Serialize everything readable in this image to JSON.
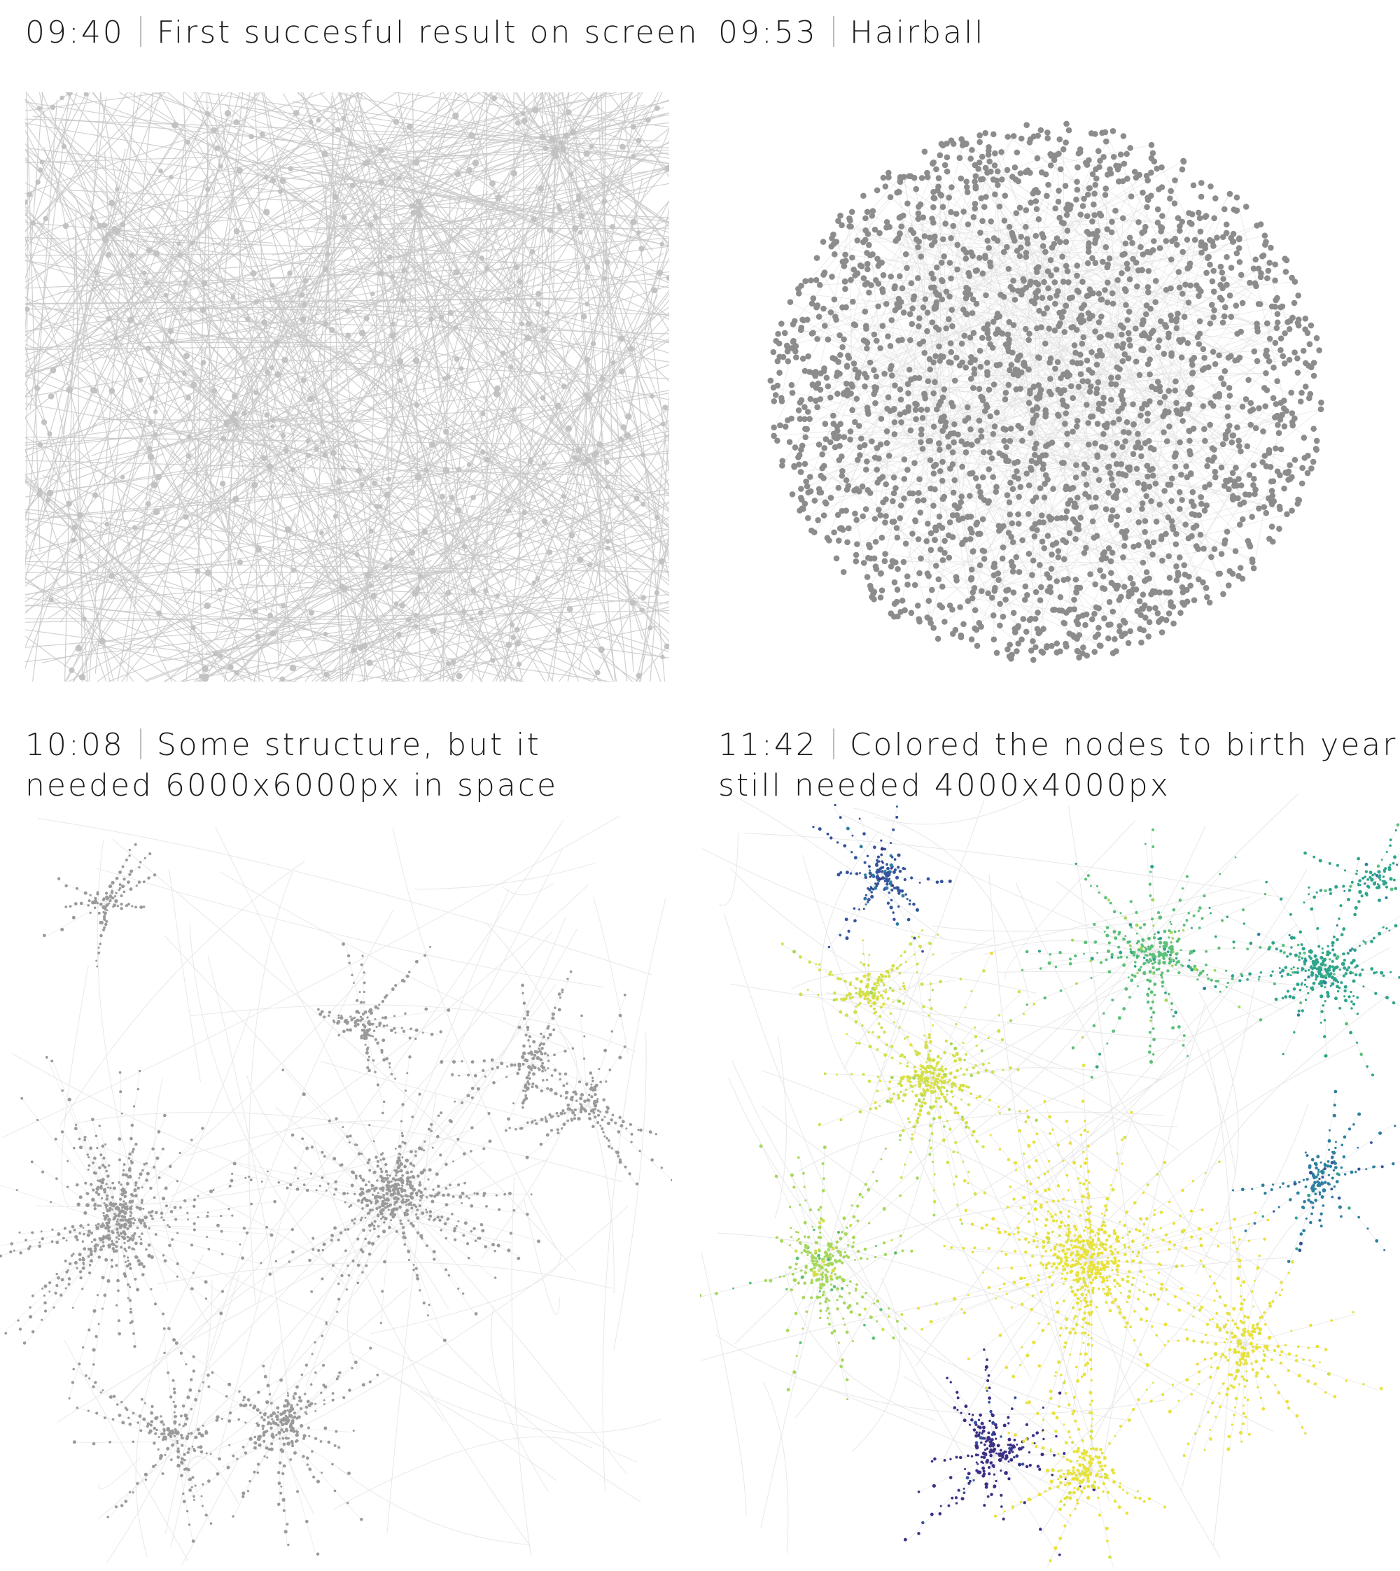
{
  "panels": [
    {
      "time": "09:40",
      "title": "First succesful result on screen",
      "title_line2": "",
      "node_color": "#c2c2c2",
      "edge_color": "#c8c8c8"
    },
    {
      "time": "09:53",
      "title": "Hairball",
      "title_line2": "",
      "node_color": "#8c8c8c",
      "edge_color": "#dcdcdc"
    },
    {
      "time": "10:08",
      "title": "Some structure, but it",
      "title_line2": "needed 6000x6000px in space",
      "node_color": "#9a9a9a",
      "edge_color": "#e6e6e6"
    },
    {
      "time": "11:42",
      "title": "Colored the nodes to birth year,",
      "title_line2": "still needed 4000x4000px",
      "node_color": "#d9dd5c",
      "edge_color": "#e4e4e4",
      "palette": [
        "#e8e23a",
        "#d4e04a",
        "#a6d85a",
        "#5cc07a",
        "#2fa48c",
        "#2e7fa0",
        "#34549c",
        "#3b2f86"
      ]
    }
  ]
}
